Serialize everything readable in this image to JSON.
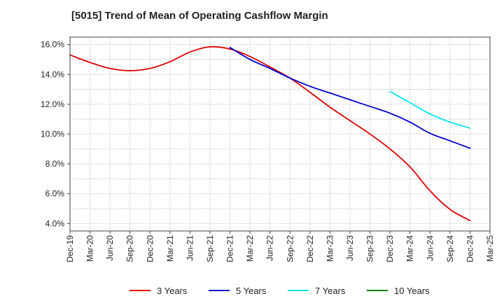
{
  "chart_data": {
    "type": "line",
    "title": "[5015]  Trend of Mean of Operating Cashflow Margin",
    "xlabel": "",
    "ylabel": "",
    "ylim": [
      3.5,
      16.5
    ],
    "y_ticks": [
      4.0,
      6.0,
      8.0,
      10.0,
      12.0,
      14.0,
      16.0
    ],
    "y_tick_labels": [
      "4.0%",
      "6.0%",
      "8.0%",
      "10.0%",
      "12.0%",
      "14.0%",
      "16.0%"
    ],
    "categories": [
      "Dec-19",
      "Mar-20",
      "Jun-20",
      "Sep-20",
      "Dec-20",
      "Mar-21",
      "Jun-21",
      "Sep-21",
      "Dec-21",
      "Mar-22",
      "Jun-22",
      "Sep-22",
      "Dec-22",
      "Mar-23",
      "Jun-23",
      "Sep-23",
      "Dec-23",
      "Mar-24",
      "Jun-24",
      "Sep-24",
      "Dec-24",
      "Mar-25"
    ],
    "grid": true,
    "legend_position": "bottom",
    "series": [
      {
        "name": "3 Years",
        "color": "#dd0000",
        "values": [
          15.3,
          14.8,
          14.4,
          14.25,
          14.4,
          14.85,
          15.5,
          15.85,
          15.7,
          15.2,
          14.5,
          13.75,
          12.8,
          11.8,
          10.9,
          10.0,
          9.0,
          7.8,
          6.2,
          4.95,
          4.2,
          null
        ]
      },
      {
        "name": "5 Years",
        "color": "#0000cc",
        "values": [
          null,
          null,
          null,
          null,
          null,
          null,
          null,
          null,
          15.8,
          15.0,
          14.4,
          13.75,
          13.2,
          12.75,
          12.3,
          11.85,
          11.4,
          10.8,
          10.05,
          9.55,
          9.05,
          null
        ]
      },
      {
        "name": "7 Years",
        "color": "#00e5ee",
        "values": [
          null,
          null,
          null,
          null,
          null,
          null,
          null,
          null,
          null,
          null,
          null,
          null,
          null,
          null,
          null,
          null,
          12.85,
          12.1,
          11.35,
          10.8,
          10.4,
          null
        ]
      },
      {
        "name": "10 Years",
        "color": "#008000",
        "values": [
          null,
          null,
          null,
          null,
          null,
          null,
          null,
          null,
          null,
          null,
          null,
          null,
          null,
          null,
          null,
          null,
          null,
          null,
          null,
          null,
          null,
          null
        ]
      }
    ]
  }
}
